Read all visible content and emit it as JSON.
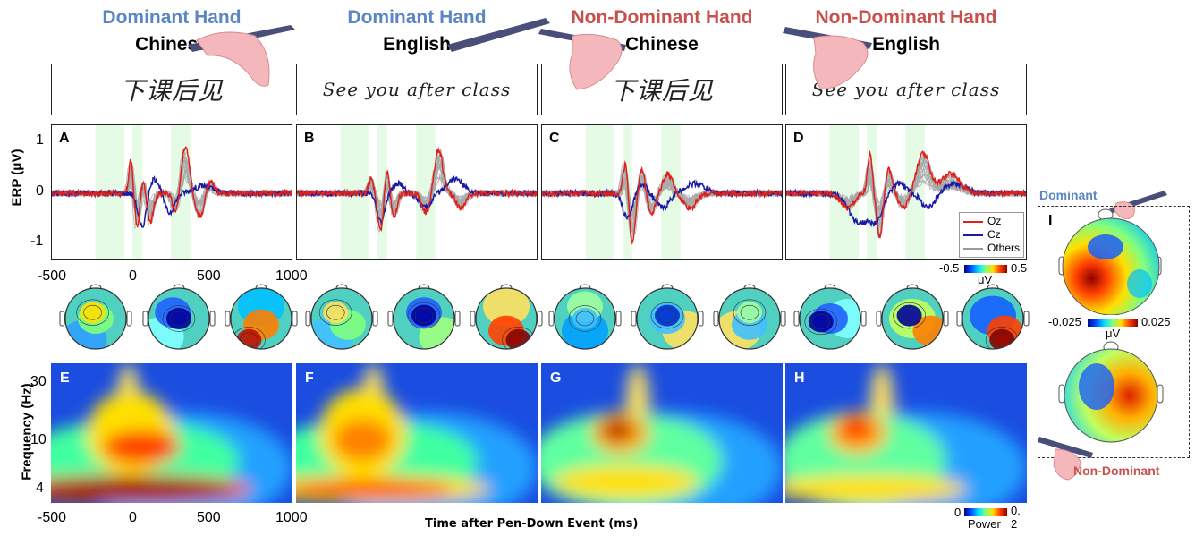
{
  "conditions": [
    {
      "hand": "Dominant Hand",
      "lang": "Chinese",
      "sample": "下课后见",
      "hand_color": "#5b86c2"
    },
    {
      "hand": "Dominant Hand",
      "lang": "English",
      "sample": "See you after class",
      "hand_color": "#5b86c2"
    },
    {
      "hand": "Non-Dominant Hand",
      "lang": "Chinese",
      "sample": "下课后见",
      "hand_color": "#c8504a"
    },
    {
      "hand": "Non-Dominant Hand",
      "lang": "English",
      "sample": "See you after class",
      "hand_color": "#c8504a"
    }
  ],
  "erp": {
    "panel_labels": [
      "A",
      "B",
      "C",
      "D"
    ],
    "ylabel": "ERP (μV)",
    "yticks": [
      "1",
      "0",
      "-1"
    ],
    "xticks": [
      "-500",
      "0",
      "500",
      "1000"
    ],
    "legend": [
      "Oz",
      "Cz",
      "Others"
    ],
    "legend_colors": [
      "#e0201b",
      "#1a1aa6",
      "#999999"
    ],
    "colorbar": {
      "min": "-0.5",
      "max": "0.5",
      "unit": "μV"
    }
  },
  "tf": {
    "panel_labels": [
      "E",
      "F",
      "G",
      "H"
    ],
    "ylabel": "Frequency (Hz)",
    "yticks": [
      "30",
      "10",
      "4"
    ],
    "xticks": [
      "-500",
      "0",
      "500",
      "1000"
    ],
    "xlabel": "Time after Pen-Down Event (ms)",
    "colorbar": {
      "min": "0",
      "max": "0.2",
      "unit": "Power",
      "max_line1": "0.",
      "max_line2": "2"
    }
  },
  "side": {
    "label": "I",
    "dominant": "Dominant",
    "nondominant": "Non-Dominant",
    "colorbar": {
      "min": "-0.025",
      "max": "0.025",
      "unit": "μV"
    }
  },
  "chart_data": [
    {
      "type": "line",
      "panel": "A",
      "x": [
        -500,
        0,
        500,
        1000
      ],
      "series": [
        {
          "name": "Oz"
        },
        {
          "name": "Cz"
        },
        {
          "name": "Others"
        }
      ],
      "ylim": [
        -1.4,
        1.4
      ],
      "xlim": [
        -500,
        1000
      ]
    },
    {
      "type": "line",
      "panel": "B",
      "x": [
        -500,
        0,
        500,
        1000
      ],
      "series": [
        {
          "name": "Oz"
        },
        {
          "name": "Cz"
        },
        {
          "name": "Others"
        }
      ],
      "ylim": [
        -1.4,
        1.4
      ],
      "xlim": [
        -500,
        1000
      ]
    },
    {
      "type": "line",
      "panel": "C",
      "x": [
        -500,
        0,
        500,
        1000
      ],
      "series": [
        {
          "name": "Oz"
        },
        {
          "name": "Cz"
        },
        {
          "name": "Others"
        }
      ],
      "ylim": [
        -1.4,
        1.4
      ],
      "xlim": [
        -500,
        1000
      ]
    },
    {
      "type": "line",
      "panel": "D",
      "x": [
        -500,
        0,
        500,
        1000
      ],
      "series": [
        {
          "name": "Oz"
        },
        {
          "name": "Cz"
        },
        {
          "name": "Others"
        }
      ],
      "ylim": [
        -1.4,
        1.4
      ],
      "xlim": [
        -500,
        1000
      ]
    }
  ]
}
